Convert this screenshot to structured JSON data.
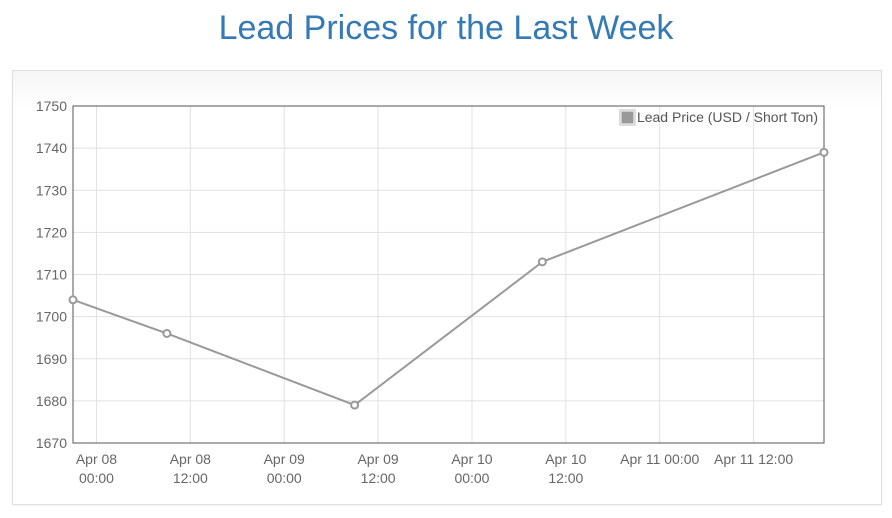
{
  "page": {
    "title": "Lead Prices for the Last Week"
  },
  "chart_data": {
    "type": "line",
    "title": "Lead Prices for the Last Week",
    "xlabel": "",
    "ylabel": "",
    "ylim": [
      1670,
      1750
    ],
    "xlim": [
      "2024-04-07T21:00",
      "2024-04-11T21:00"
    ],
    "y_ticks": [
      1670,
      1680,
      1690,
      1700,
      1710,
      1720,
      1730,
      1740,
      1750
    ],
    "x_ticks": [
      {
        "t": "2024-04-08T00:00",
        "lines": [
          "Apr 08",
          "00:00"
        ]
      },
      {
        "t": "2024-04-08T12:00",
        "lines": [
          "Apr 08",
          "12:00"
        ]
      },
      {
        "t": "2024-04-09T00:00",
        "lines": [
          "Apr 09",
          "00:00"
        ]
      },
      {
        "t": "2024-04-09T12:00",
        "lines": [
          "Apr 09",
          "12:00"
        ]
      },
      {
        "t": "2024-04-10T00:00",
        "lines": [
          "Apr 10",
          "00:00"
        ]
      },
      {
        "t": "2024-04-10T12:00",
        "lines": [
          "Apr 10",
          "12:00"
        ]
      },
      {
        "t": "2024-04-11T00:00",
        "lines": [
          "Apr 11 00:00"
        ]
      },
      {
        "t": "2024-04-11T12:00",
        "lines": [
          "Apr 11 12:00"
        ]
      }
    ],
    "grid": true,
    "legend_position": "top-right",
    "series": [
      {
        "name": "Lead Price (USD / Short Ton)",
        "color": "#999999",
        "points": [
          {
            "x": "2024-04-07T21:00",
            "y": 1704
          },
          {
            "x": "2024-04-08T09:00",
            "y": 1696
          },
          {
            "x": "2024-04-09T09:00",
            "y": 1679
          },
          {
            "x": "2024-04-10T09:00",
            "y": 1713
          },
          {
            "x": "2024-04-11T21:00",
            "y": 1739
          }
        ]
      }
    ]
  }
}
